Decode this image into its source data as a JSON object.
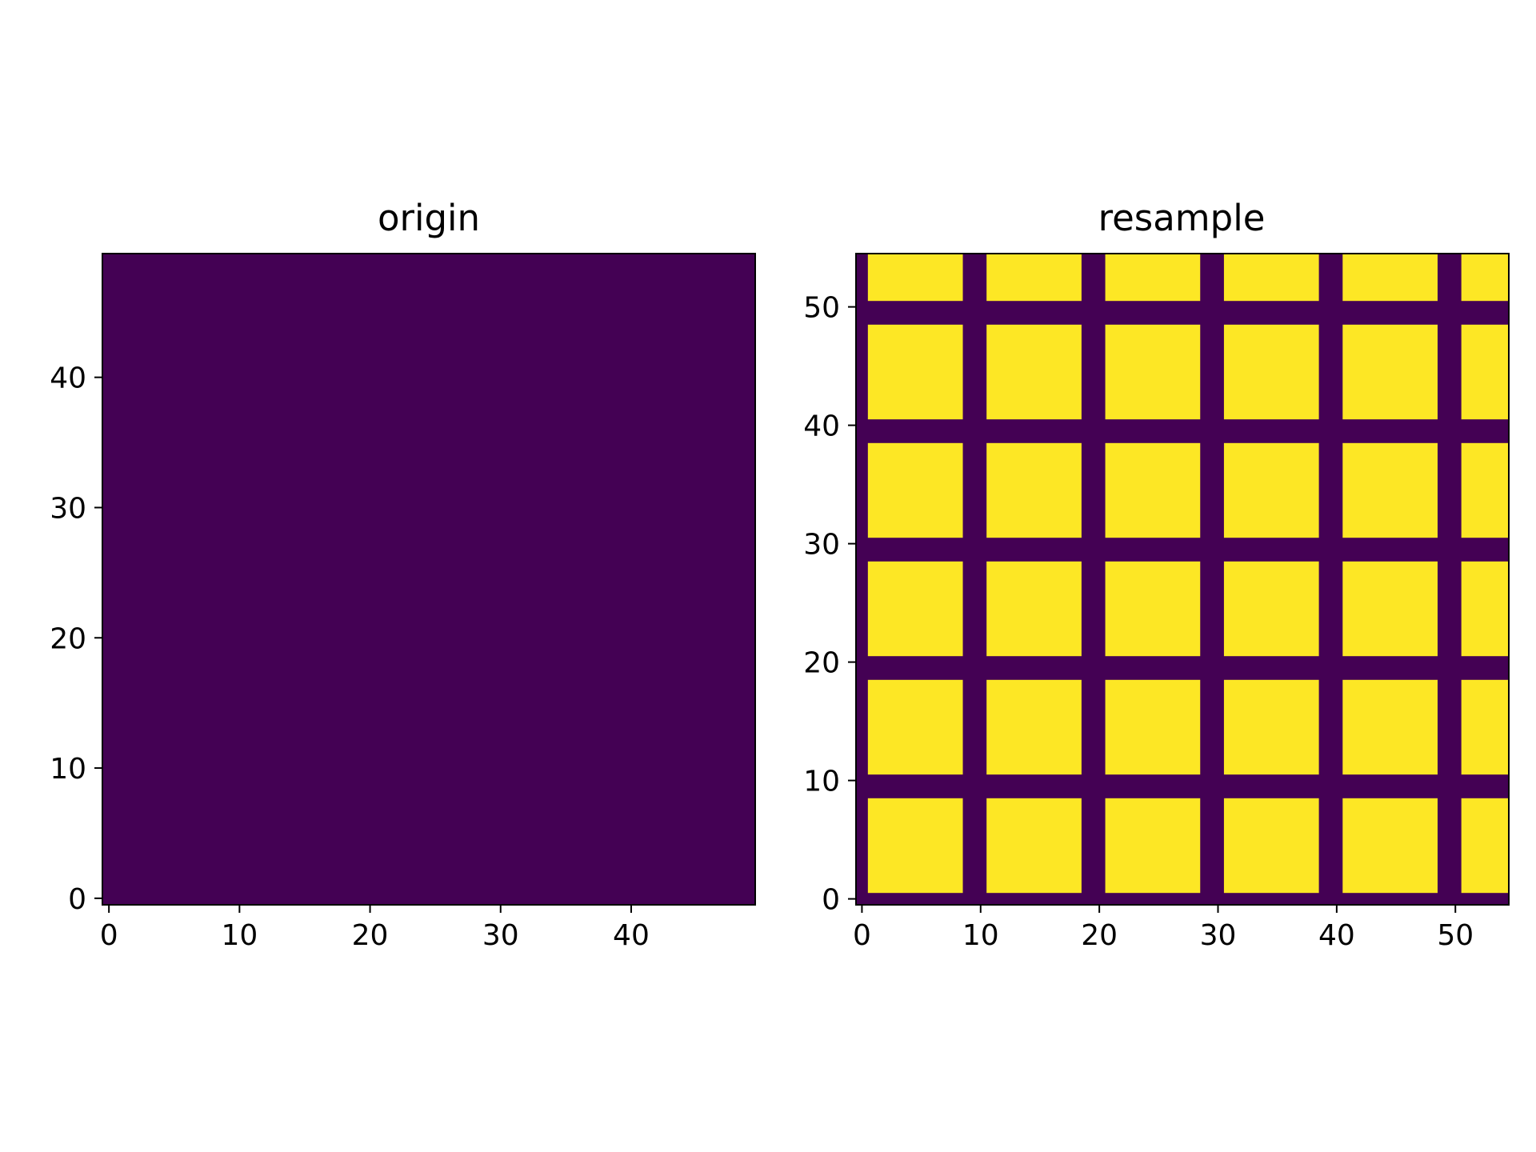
{
  "chart_data": [
    {
      "type": "heatmap",
      "title": "origin",
      "xlabel": "",
      "ylabel": "",
      "xlim": [
        -0.5,
        49.5
      ],
      "ylim": [
        -0.5,
        49.5
      ],
      "xticks": [
        0,
        10,
        20,
        30,
        40
      ],
      "yticks": [
        0,
        10,
        20,
        30,
        40
      ],
      "colormap": "viridis",
      "grid": false,
      "description_values": "uniform field, all cells at minimum value",
      "fill_value": 0,
      "colors": {
        "low": "#440154",
        "high": "#fde725"
      }
    },
    {
      "type": "heatmap",
      "title": "resample",
      "xlabel": "",
      "ylabel": "",
      "xlim": [
        -0.5,
        54.5
      ],
      "ylim": [
        -0.5,
        54.5
      ],
      "xticks": [
        0,
        10,
        20,
        30,
        40,
        50
      ],
      "yticks": [
        0,
        10,
        20,
        30,
        40,
        50
      ],
      "colormap": "viridis",
      "grid": false,
      "cells_high": [
        [
          1,
          8
        ],
        [
          11,
          18
        ],
        [
          21,
          28
        ],
        [
          31,
          38
        ],
        [
          41,
          48
        ],
        [
          51,
          54
        ]
      ],
      "colors": {
        "low": "#440154",
        "high": "#fde725"
      }
    }
  ]
}
